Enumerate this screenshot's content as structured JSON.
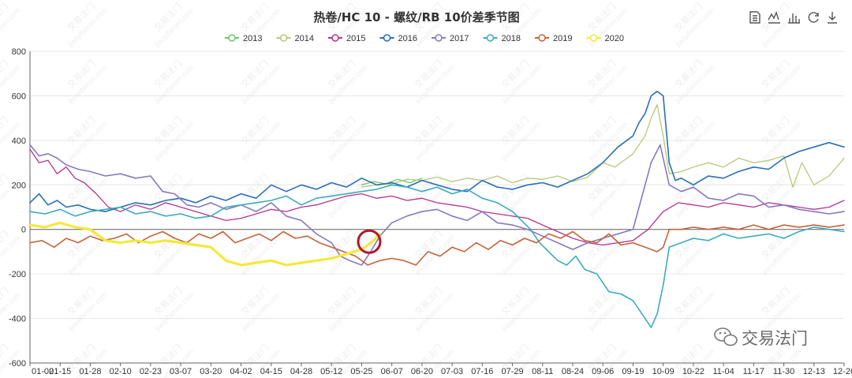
{
  "chart_data": {
    "type": "line",
    "title": "热卷/HC 10 - 螺纹/RB 10价差季节图",
    "xlabel": "",
    "ylabel": "",
    "ylim": [
      -600,
      800
    ],
    "yticks": [
      -600,
      -400,
      -200,
      0,
      200,
      400,
      600,
      800
    ],
    "x_ticks": [
      "01-02",
      "01-15",
      "01-28",
      "02-10",
      "02-23",
      "03-07",
      "03-20",
      "04-02",
      "04-15",
      "04-28",
      "05-12",
      "05-25",
      "06-07",
      "06-20",
      "07-03",
      "07-16",
      "07-29",
      "08-11",
      "08-24",
      "09-06",
      "09-19",
      "10-09",
      "10-22",
      "11-04",
      "11-17",
      "11-30",
      "12-13",
      "12-26"
    ],
    "x_domain": [
      0,
      27
    ],
    "grid": true,
    "legend_position": "top-center",
    "series": [
      {
        "name": "2013",
        "color": "#6cc56c",
        "width": 1.3,
        "x": [
          11.0,
          11.4,
          11.8,
          12.2,
          12.6,
          13.0
        ],
        "y": [
          200,
          215,
          205,
          225,
          210,
          230
        ]
      },
      {
        "name": "2014",
        "color": "#b5c97a",
        "width": 1.3,
        "x": [
          11.0,
          11.5,
          12.0,
          12.5,
          13.0,
          13.5,
          14.0,
          14.5,
          15.0,
          15.5,
          16.0,
          16.5,
          17.0,
          17.5,
          18.0,
          18.5,
          19.0,
          19.4,
          19.8,
          20.0,
          20.2,
          20.4,
          20.6,
          20.8,
          21.0,
          21.2,
          21.6,
          22.0,
          22.5,
          23.0,
          23.5,
          24.0,
          24.5,
          25.0,
          25.3,
          25.6,
          26.0,
          26.5,
          27.0
        ],
        "y": [
          190,
          200,
          205,
          225,
          220,
          235,
          215,
          230,
          220,
          240,
          210,
          230,
          225,
          240,
          215,
          235,
          300,
          280,
          320,
          340,
          380,
          420,
          500,
          560,
          420,
          250,
          260,
          280,
          300,
          280,
          320,
          300,
          310,
          330,
          190,
          300,
          200,
          240,
          320
        ]
      },
      {
        "name": "2015",
        "color": "#b5348f",
        "width": 1.3,
        "x": [
          0.0,
          0.3,
          0.6,
          0.9,
          1.2,
          1.5,
          1.8,
          2.2,
          2.6,
          3.0,
          3.5,
          4.0,
          4.5,
          5.0,
          5.5,
          6.0,
          6.5,
          7.0,
          7.5,
          8.0,
          8.5,
          9.0,
          9.5,
          10.0,
          10.5,
          11.0,
          11.5,
          12.0,
          12.5,
          13.0,
          13.5,
          14.0,
          14.5,
          15.0,
          15.5,
          16.0,
          16.5,
          17.0,
          17.5,
          18.0,
          18.5,
          19.0,
          19.5,
          20.0,
          20.5,
          21.0,
          21.5,
          22.0,
          22.5,
          23.0,
          23.5,
          24.0,
          24.5,
          25.0,
          25.5,
          26.0,
          26.5,
          27.0
        ],
        "y": [
          360,
          300,
          310,
          250,
          280,
          230,
          210,
          160,
          100,
          80,
          110,
          90,
          120,
          100,
          80,
          60,
          40,
          50,
          70,
          90,
          80,
          100,
          110,
          130,
          150,
          160,
          140,
          150,
          130,
          140,
          120,
          110,
          100,
          80,
          70,
          60,
          50,
          20,
          -10,
          -40,
          -60,
          -70,
          -60,
          -50,
          0,
          80,
          120,
          110,
          100,
          120,
          110,
          100,
          120,
          110,
          100,
          90,
          100,
          130
        ]
      },
      {
        "name": "2016",
        "color": "#2a6fb5",
        "width": 1.6,
        "x": [
          0.0,
          0.3,
          0.6,
          0.9,
          1.2,
          1.6,
          2.0,
          2.5,
          3.0,
          3.5,
          4.0,
          4.5,
          5.0,
          5.5,
          6.0,
          6.5,
          7.0,
          7.5,
          8.0,
          8.5,
          9.0,
          9.5,
          10.0,
          10.5,
          11.0,
          11.5,
          12.0,
          12.5,
          13.0,
          13.5,
          14.0,
          14.5,
          15.0,
          15.5,
          16.0,
          16.5,
          17.0,
          17.5,
          18.0,
          18.5,
          19.0,
          19.5,
          20.0,
          20.2,
          20.4,
          20.6,
          20.8,
          21.0,
          21.2,
          21.4,
          21.6,
          22.0,
          22.5,
          23.0,
          23.5,
          24.0,
          24.5,
          25.0,
          25.5,
          26.0,
          26.5,
          27.0
        ],
        "y": [
          120,
          160,
          110,
          130,
          100,
          110,
          90,
          80,
          100,
          120,
          110,
          130,
          140,
          120,
          150,
          130,
          160,
          140,
          200,
          170,
          200,
          180,
          210,
          190,
          230,
          200,
          210,
          190,
          220,
          200,
          180,
          170,
          220,
          190,
          180,
          200,
          210,
          190,
          220,
          250,
          300,
          370,
          420,
          480,
          520,
          600,
          620,
          600,
          300,
          220,
          230,
          200,
          240,
          230,
          260,
          280,
          270,
          320,
          350,
          370,
          390,
          370
        ]
      },
      {
        "name": "2017",
        "color": "#8878c0",
        "width": 1.6,
        "x": [
          0.0,
          0.3,
          0.6,
          0.9,
          1.2,
          1.6,
          2.0,
          2.5,
          3.0,
          3.5,
          4.0,
          4.4,
          4.8,
          5.2,
          5.6,
          6.0,
          6.5,
          7.0,
          7.5,
          8.0,
          8.5,
          9.0,
          9.5,
          10.0,
          10.3,
          10.6,
          11.0,
          11.3,
          11.6,
          12.0,
          12.5,
          13.0,
          13.5,
          14.0,
          14.5,
          15.0,
          15.5,
          16.0,
          16.5,
          17.0,
          17.5,
          18.0,
          18.5,
          19.0,
          19.5,
          20.0,
          20.3,
          20.6,
          20.9,
          21.2,
          21.6,
          22.0,
          22.5,
          23.0,
          23.5,
          24.0,
          24.5,
          25.0,
          25.5,
          26.0,
          26.5,
          27.0
        ],
        "y": [
          380,
          330,
          340,
          320,
          290,
          270,
          260,
          240,
          250,
          230,
          240,
          170,
          160,
          110,
          100,
          120,
          90,
          110,
          80,
          120,
          60,
          40,
          -20,
          -60,
          -120,
          -140,
          -160,
          -100,
          -30,
          30,
          60,
          80,
          90,
          60,
          40,
          80,
          30,
          20,
          0,
          -30,
          -60,
          -90,
          -60,
          -40,
          -20,
          0,
          150,
          300,
          380,
          200,
          170,
          190,
          140,
          130,
          160,
          150,
          100,
          110,
          90,
          80,
          70,
          80
        ]
      },
      {
        "name": "2018",
        "color": "#3aacbf",
        "width": 1.6,
        "x": [
          0.0,
          0.5,
          1.0,
          1.5,
          2.0,
          2.5,
          3.0,
          3.5,
          4.0,
          4.5,
          5.0,
          5.5,
          6.0,
          6.5,
          7.0,
          7.5,
          8.0,
          8.5,
          9.0,
          9.5,
          10.0,
          10.5,
          11.0,
          11.5,
          12.0,
          12.5,
          13.0,
          13.5,
          14.0,
          14.5,
          15.0,
          15.5,
          16.0,
          16.3,
          16.6,
          16.9,
          17.2,
          17.5,
          17.8,
          18.1,
          18.4,
          18.8,
          19.2,
          19.6,
          20.0,
          20.2,
          20.4,
          20.6,
          20.8,
          21.0,
          21.2,
          21.6,
          22.0,
          22.5,
          23.0,
          23.5,
          24.0,
          24.5,
          25.0,
          25.5,
          26.0,
          26.5,
          27.0
        ],
        "y": [
          80,
          70,
          90,
          60,
          80,
          90,
          100,
          70,
          80,
          60,
          70,
          50,
          60,
          100,
          110,
          120,
          130,
          150,
          110,
          140,
          150,
          160,
          170,
          180,
          200,
          190,
          170,
          190,
          160,
          180,
          140,
          120,
          80,
          40,
          0,
          -60,
          -100,
          -140,
          -160,
          -120,
          -180,
          -200,
          -280,
          -290,
          -320,
          -360,
          -400,
          -440,
          -380,
          -250,
          -80,
          -60,
          -40,
          -50,
          -20,
          -40,
          -30,
          -20,
          -40,
          -10,
          10,
          0,
          -10
        ]
      },
      {
        "name": "2019",
        "color": "#c3633a",
        "width": 1.6,
        "x": [
          0.0,
          0.4,
          0.8,
          1.2,
          1.6,
          2.0,
          2.4,
          2.8,
          3.2,
          3.6,
          4.0,
          4.4,
          4.8,
          5.2,
          5.6,
          6.0,
          6.4,
          6.8,
          7.2,
          7.6,
          8.0,
          8.4,
          8.8,
          9.2,
          9.6,
          10.0,
          10.4,
          10.8,
          11.2,
          11.6,
          12.0,
          12.4,
          12.8,
          13.2,
          13.6,
          14.0,
          14.4,
          14.8,
          15.2,
          15.6,
          16.0,
          16.4,
          16.8,
          17.2,
          17.6,
          18.0,
          18.4,
          18.8,
          19.2,
          19.6,
          20.0,
          20.4,
          20.8,
          21.0,
          21.2,
          21.6,
          22.0,
          22.5,
          23.0,
          23.5,
          24.0,
          24.5,
          25.0,
          25.5,
          26.0,
          26.5,
          27.0
        ],
        "y": [
          -60,
          -50,
          -80,
          -40,
          -60,
          -30,
          -50,
          -40,
          -20,
          -60,
          -30,
          -10,
          -40,
          -60,
          -20,
          -40,
          -10,
          -60,
          -40,
          -20,
          -50,
          -10,
          -40,
          -30,
          -60,
          -80,
          -100,
          -120,
          -160,
          -140,
          -130,
          -140,
          -160,
          -100,
          -120,
          -80,
          -100,
          -60,
          -90,
          -50,
          -70,
          -40,
          -60,
          -20,
          -40,
          -10,
          -50,
          -60,
          -20,
          -70,
          -60,
          -80,
          -100,
          -80,
          0,
          0,
          10,
          0,
          10,
          0,
          20,
          0,
          20,
          10,
          20,
          10,
          20
        ]
      },
      {
        "name": "2020",
        "color": "#f5e83a",
        "width": 3.2,
        "x": [
          0.0,
          0.5,
          1.0,
          1.5,
          2.0,
          2.5,
          3.0,
          3.5,
          4.0,
          4.5,
          5.0,
          5.5,
          6.0,
          6.5,
          7.0,
          7.5,
          8.0,
          8.5,
          9.0,
          9.5,
          10.0,
          10.5,
          11.0,
          11.2,
          11.4,
          11.6
        ],
        "y": [
          20,
          10,
          30,
          10,
          0,
          -50,
          -60,
          -50,
          -60,
          -50,
          -60,
          -70,
          -80,
          -140,
          -160,
          -150,
          -140,
          -160,
          -150,
          -140,
          -130,
          -110,
          -90,
          -70,
          -50,
          -20
        ]
      }
    ],
    "annotations": [
      {
        "type": "circle-marker",
        "x": 11.25,
        "y": -55,
        "color": "#b2182b"
      }
    ]
  },
  "toolbox": {
    "icons": [
      "data-view-icon",
      "line-chart-icon",
      "bar-chart-icon",
      "refresh-icon",
      "download-icon"
    ]
  },
  "watermark": {
    "repeat_text": "jiaoyifamen.com",
    "repeat_text_cn": "交易法门",
    "logo_text": "交易法门"
  }
}
